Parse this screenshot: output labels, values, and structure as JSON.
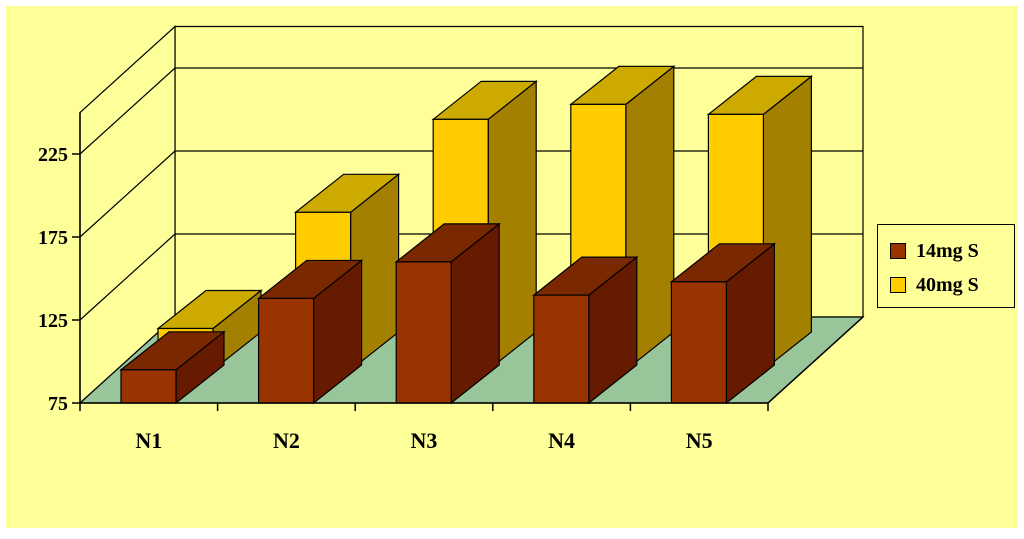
{
  "chart_data": {
    "type": "bar",
    "categories": [
      "N1",
      "N2",
      "N3",
      "N4",
      "N5"
    ],
    "series": [
      {
        "name": "14mg S",
        "values": [
          95,
          138,
          160,
          140,
          148
        ],
        "color": "#993300"
      },
      {
        "name": "40mg S",
        "values": [
          100,
          170,
          226,
          235,
          229
        ],
        "color": "#ffcc00"
      }
    ],
    "yticks": [
      "75",
      "125",
      "175",
      "225"
    ],
    "ylim": [
      75,
      250
    ],
    "title": "",
    "xlabel": "",
    "ylabel": "",
    "grid": true,
    "legend_position": "right",
    "colors": {
      "background": "#ffff99",
      "plot_area": "#ffff99",
      "floor": "#99c59b",
      "series_1_front": "#993300",
      "series_1_side": "#661a00",
      "series_1_top": "#7a2800",
      "series_2_front": "#ffcc00",
      "series_2_side": "#a38000",
      "series_2_top": "#ccaa00"
    }
  }
}
